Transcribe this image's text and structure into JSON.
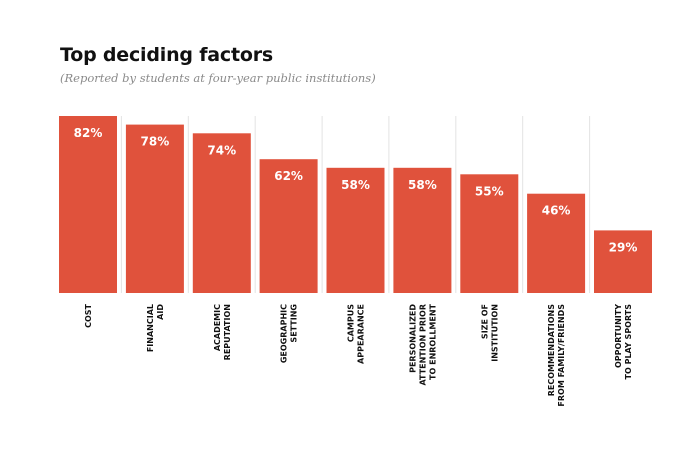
{
  "chart_data": {
    "type": "bar",
    "title": "Top deciding factors",
    "subtitle": "(Reported by students at four-year public institutions)",
    "categories": [
      [
        "COST"
      ],
      [
        "FINANCIAL",
        "AID"
      ],
      [
        "ACADEMIC",
        "REPUTATION"
      ],
      [
        "GEOGRAPHIC",
        "SETTING"
      ],
      [
        "CAMPUS",
        "APPEARANCE"
      ],
      [
        "PERSONALIZED",
        "ATTENTION PRIOR",
        "TO ENROLLMENT"
      ],
      [
        "SIZE OF",
        "INSTITUTION"
      ],
      [
        "RECOMMENDATIONS",
        "FROM FAMILY/FRIENDS"
      ],
      [
        "OPPORTUNITY",
        "TO PLAY SPORTS"
      ]
    ],
    "values": [
      82,
      78,
      74,
      62,
      58,
      58,
      55,
      46,
      29
    ],
    "value_labels": [
      "82%",
      "78%",
      "74%",
      "62%",
      "58%",
      "58%",
      "55%",
      "46%",
      "29%"
    ],
    "ylim": [
      0,
      82
    ],
    "grid": false,
    "colors": {
      "bar": "#e0523c",
      "separator": "#e3e3e3",
      "baseline": "#cfcfcf"
    }
  }
}
